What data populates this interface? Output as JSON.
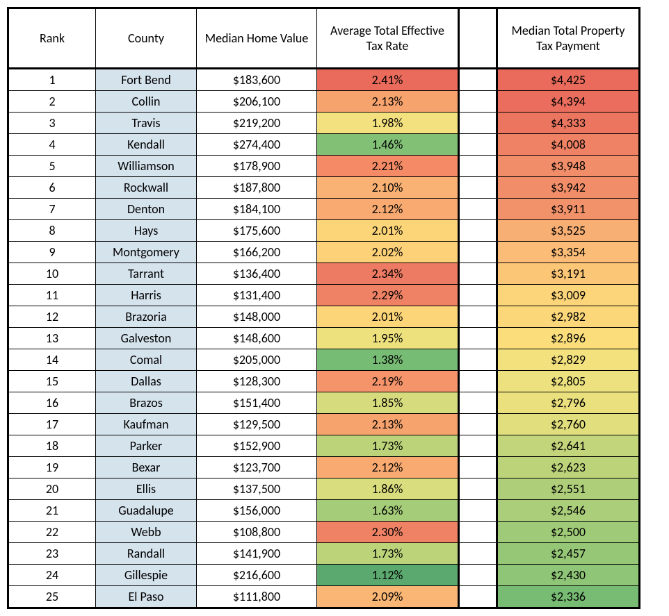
{
  "columns": [
    "Rank",
    "County",
    "Median Home Value",
    "Average Total Effective Tax Rate",
    "",
    "Median Total Property Tax Payment"
  ],
  "colors": {
    "county_bg": "#d5e3ed",
    "header_bg": "#ffffff",
    "spacer_bg": "#ffffff"
  },
  "rows": [
    {
      "rank": "1",
      "county": "Fort Bend",
      "mhv": "$183,600",
      "rate": "2.41%",
      "rate_bg": "#ea6b5c",
      "pay": "$4,425",
      "pay_bg": "#ea6b5c"
    },
    {
      "rank": "2",
      "county": "Collin",
      "mhv": "$206,100",
      "rate": "2.13%",
      "rate_bg": "#f7a36e",
      "pay": "$4,394",
      "pay_bg": "#eb6d5d"
    },
    {
      "rank": "3",
      "county": "Travis",
      "mhv": "$219,200",
      "rate": "1.98%",
      "rate_bg": "#f3e07e",
      "pay": "$4,333",
      "pay_bg": "#ec7560"
    },
    {
      "rank": "4",
      "county": "Kendall",
      "mhv": "$274,400",
      "rate": "1.46%",
      "rate_bg": "#82c076",
      "pay": "$4,008",
      "pay_bg": "#ef8264"
    },
    {
      "rank": "5",
      "county": "Williamson",
      "mhv": "$178,900",
      "rate": "2.21%",
      "rate_bg": "#f48b66",
      "pay": "$3,948",
      "pay_bg": "#f18e69"
    },
    {
      "rank": "6",
      "county": "Rockwall",
      "mhv": "$187,800",
      "rate": "2.10%",
      "rate_bg": "#f9b273",
      "pay": "$3,942",
      "pay_bg": "#f18e69"
    },
    {
      "rank": "7",
      "county": "Denton",
      "mhv": "$184,100",
      "rate": "2.12%",
      "rate_bg": "#f8aa71",
      "pay": "$3,911",
      "pay_bg": "#f2926a"
    },
    {
      "rank": "8",
      "county": "Hays",
      "mhv": "$175,600",
      "rate": "2.01%",
      "rate_bg": "#fcd579",
      "pay": "$3,525",
      "pay_bg": "#f7af74"
    },
    {
      "rank": "9",
      "county": "Montgomery",
      "mhv": "$166,200",
      "rate": "2.02%",
      "rate_bg": "#fcd178",
      "pay": "$3,354",
      "pay_bg": "#fabc76"
    },
    {
      "rank": "10",
      "county": "Tarrant",
      "mhv": "$136,400",
      "rate": "2.34%",
      "rate_bg": "#ed7a62",
      "pay": "$3,191",
      "pay_bg": "#fcc677"
    },
    {
      "rank": "11",
      "county": "Harris",
      "mhv": "$131,400",
      "rate": "2.29%",
      "rate_bg": "#ef8264",
      "pay": "$3,009",
      "pay_bg": "#fcd479"
    },
    {
      "rank": "12",
      "county": "Brazoria",
      "mhv": "$148,000",
      "rate": "2.01%",
      "rate_bg": "#fcd579",
      "pay": "$2,982",
      "pay_bg": "#fbd779"
    },
    {
      "rank": "13",
      "county": "Galveston",
      "mhv": "$148,600",
      "rate": "1.95%",
      "rate_bg": "#ede17e",
      "pay": "$2,896",
      "pay_bg": "#fbde7b"
    },
    {
      "rank": "14",
      "county": "Comal",
      "mhv": "$205,000",
      "rate": "1.38%",
      "rate_bg": "#77bc74",
      "pay": "$2,829",
      "pay_bg": "#f3e17e"
    },
    {
      "rank": "15",
      "county": "Dallas",
      "mhv": "$128,300",
      "rate": "2.19%",
      "rate_bg": "#f5946a",
      "pay": "$2,805",
      "pay_bg": "#ece17e"
    },
    {
      "rank": "16",
      "county": "Brazos",
      "mhv": "$151,400",
      "rate": "1.85%",
      "rate_bg": "#d6dc7d",
      "pay": "$2,796",
      "pay_bg": "#eae07e"
    },
    {
      "rank": "17",
      "county": "Kaufman",
      "mhv": "$129,500",
      "rate": "2.13%",
      "rate_bg": "#f7a36e",
      "pay": "$2,760",
      "pay_bg": "#e0de7d"
    },
    {
      "rank": "18",
      "county": "Parker",
      "mhv": "$152,900",
      "rate": "1.73%",
      "rate_bg": "#bcd37a",
      "pay": "$2,641",
      "pay_bg": "#c2d57b"
    },
    {
      "rank": "19",
      "county": "Bexar",
      "mhv": "$123,700",
      "rate": "2.12%",
      "rate_bg": "#f8aa71",
      "pay": "$2,623",
      "pay_bg": "#bcd37a"
    },
    {
      "rank": "20",
      "county": "Ellis",
      "mhv": "$137,500",
      "rate": "1.86%",
      "rate_bg": "#d9dd7d",
      "pay": "$2,551",
      "pay_bg": "#aece79"
    },
    {
      "rank": "21",
      "county": "Guadalupe",
      "mhv": "$156,000",
      "rate": "1.63%",
      "rate_bg": "#a5cc78",
      "pay": "$2,546",
      "pay_bg": "#aace79"
    },
    {
      "rank": "22",
      "county": "Webb",
      "mhv": "$108,800",
      "rate": "2.30%",
      "rate_bg": "#ef8264",
      "pay": "$2,500",
      "pay_bg": "#9fca77"
    },
    {
      "rank": "23",
      "county": "Randall",
      "mhv": "$141,900",
      "rate": "1.73%",
      "rate_bg": "#bcd37a",
      "pay": "$2,457",
      "pay_bg": "#95c777"
    },
    {
      "rank": "24",
      "county": "Gillespie",
      "mhv": "$216,600",
      "rate": "1.12%",
      "rate_bg": "#5ba96e",
      "pay": "$2,430",
      "pay_bg": "#8ec576"
    },
    {
      "rank": "25",
      "county": "El Paso",
      "mhv": "$111,800",
      "rate": "2.09%",
      "rate_bg": "#f9b674",
      "pay": "$2,336",
      "pay_bg": "#78bc74"
    }
  ]
}
